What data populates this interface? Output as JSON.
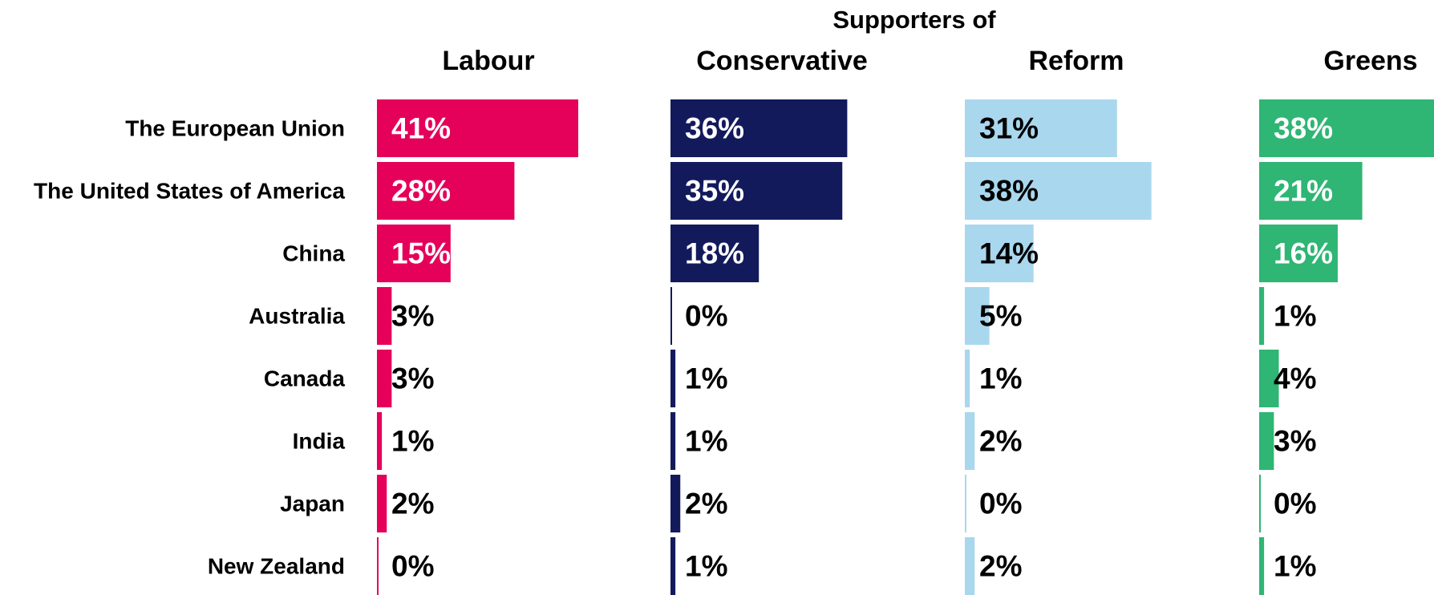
{
  "chart_data": {
    "type": "bar",
    "orientation": "horizontal",
    "title": "Supporters of",
    "categories": [
      "The European Union",
      "The United States of America",
      "China",
      "Australia",
      "Canada",
      "India",
      "Japan",
      "New Zealand"
    ],
    "series": [
      {
        "name": "Labour",
        "color": "#e5005a",
        "label_color_inside": "#ffffff",
        "values": [
          41,
          28,
          15,
          3,
          3,
          1,
          2,
          0
        ]
      },
      {
        "name": "Conservative",
        "color": "#131a5c",
        "label_color_inside": "#ffffff",
        "values": [
          36,
          35,
          18,
          0,
          1,
          1,
          2,
          1
        ]
      },
      {
        "name": "Reform",
        "color": "#a9d7ee",
        "label_color_inside": "#000000",
        "values": [
          31,
          38,
          14,
          5,
          1,
          2,
          0,
          2
        ]
      },
      {
        "name": "Greens",
        "color": "#2fb574",
        "label_color_inside": "#ffffff",
        "values": [
          38,
          21,
          16,
          1,
          4,
          3,
          0,
          1
        ]
      }
    ],
    "value_suffix": "%",
    "xlim": [
      0,
      41
    ],
    "grid": false,
    "legend": "none"
  }
}
